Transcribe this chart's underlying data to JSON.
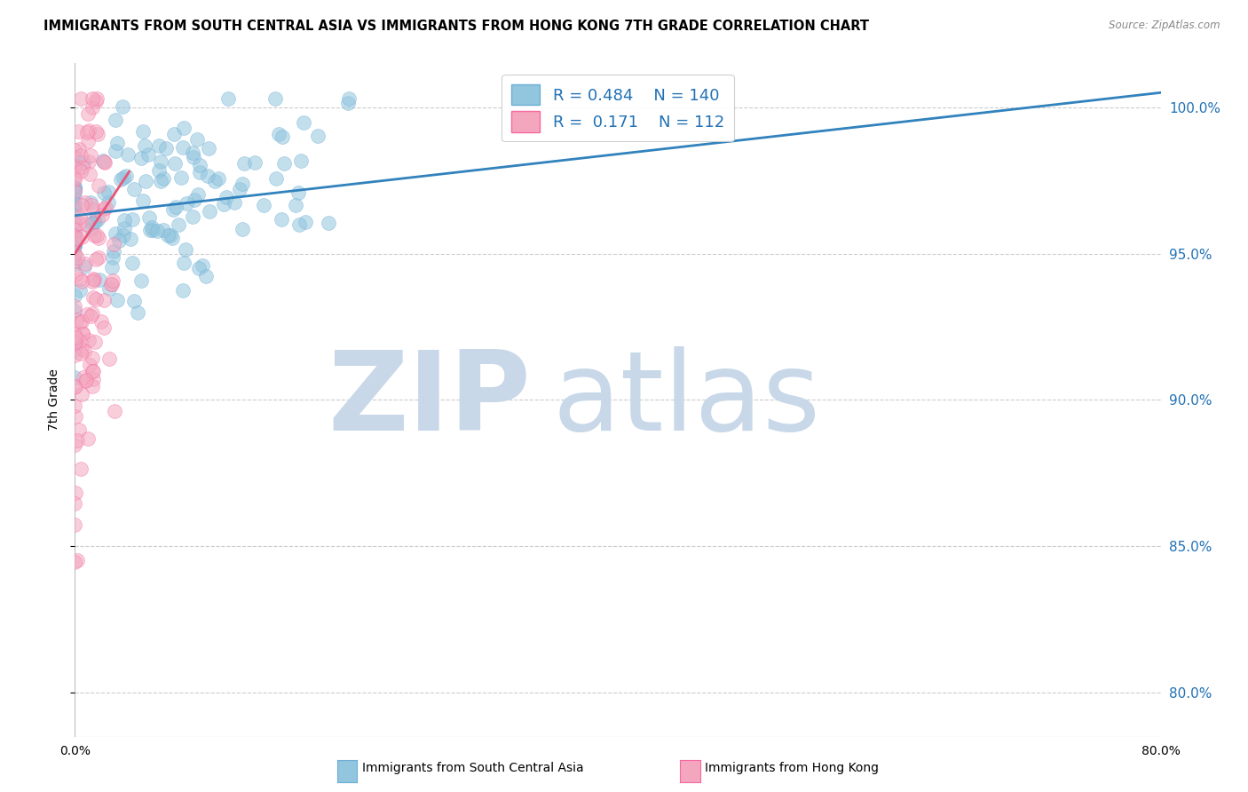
{
  "title": "IMMIGRANTS FROM SOUTH CENTRAL ASIA VS IMMIGRANTS FROM HONG KONG 7TH GRADE CORRELATION CHART",
  "source": "Source: ZipAtlas.com",
  "ylabel": "7th Grade",
  "right_yticks": [
    "100.0%",
    "95.0%",
    "90.0%",
    "85.0%",
    "80.0%"
  ],
  "right_ytick_vals": [
    1.0,
    0.95,
    0.9,
    0.85,
    0.8
  ],
  "legend_blue_R": "R = 0.484",
  "legend_blue_N": "N = 140",
  "legend_pink_R": "R =  0.171",
  "legend_pink_N": "N = 112",
  "blue_color": "#92c5de",
  "pink_color": "#f4a6be",
  "blue_line_color": "#3182bd",
  "pink_line_color": "#e8567a",
  "blue_marker_edge": "#6baed6",
  "pink_marker_edge": "#f768a1",
  "watermark_zip": "ZIP",
  "watermark_atlas": "atlas",
  "watermark_color": "#c8d8e8",
  "background_color": "#ffffff",
  "xlim": [
    0.0,
    0.8
  ],
  "ylim": [
    0.785,
    1.015
  ],
  "blue_R": 0.484,
  "pink_R": 0.171,
  "blue_N": 140,
  "pink_N": 112,
  "grid_color": "#cccccc",
  "title_fontsize": 10.5,
  "axis_label_fontsize": 9,
  "marker_size": 130,
  "marker_alpha": 0.55
}
